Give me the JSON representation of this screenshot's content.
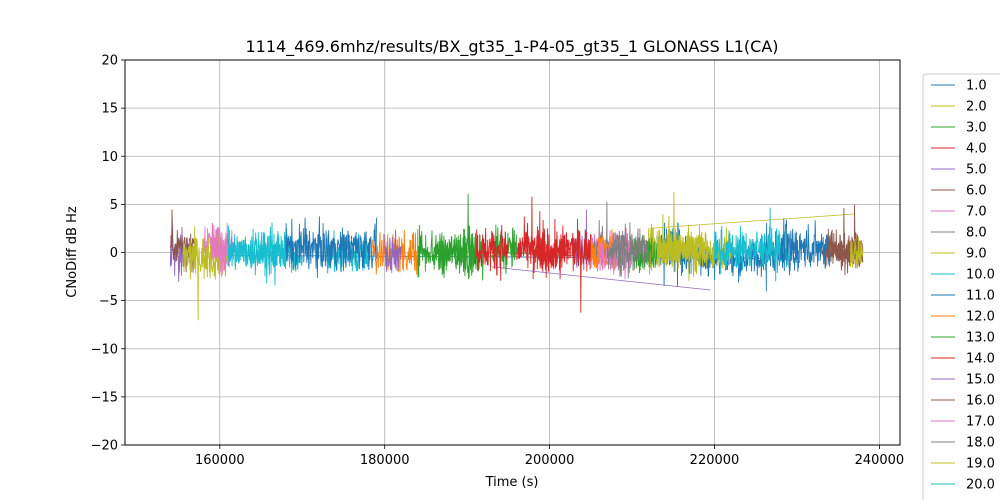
{
  "chart_data": {
    "type": "line",
    "title": "1114_469.6mhz/results/BX_gt35_1-P4-05_gt35_1 GLONASS L1(CA)",
    "xlabel": "Time (s)",
    "ylabel": "CNoDiff dB Hz",
    "xlim": [
      148500,
      242500
    ],
    "ylim": [
      -20,
      20
    ],
    "xticks": [
      160000,
      180000,
      200000,
      220000,
      240000
    ],
    "xtick_labels": [
      "160000",
      "180000",
      "200000",
      "220000",
      "240000"
    ],
    "yticks": [
      -20,
      -15,
      -10,
      -5,
      0,
      5,
      10,
      15,
      20
    ],
    "ytick_labels": [
      "−20",
      "−15",
      "−10",
      "−5",
      "0",
      "5",
      "10",
      "15",
      "20"
    ],
    "grid": true,
    "legend_position": "right (outside, clipped)",
    "series": [
      {
        "name": "1.0",
        "color": "#1f77b4",
        "segments": [
          [
            213000,
            216000,
            0.5,
            2.5
          ],
          [
            216000,
            226000,
            -0.5,
            2.0
          ],
          [
            226000,
            230000,
            0.0,
            2.3
          ]
        ],
        "line": [
          [
            161000,
            -0.3
          ],
          [
            226000,
            -0.6
          ]
        ]
      },
      {
        "name": "2.0",
        "color": "#bcbd22",
        "segments": [
          [
            212000,
            222000,
            0.2,
            2.3
          ]
        ],
        "line": [
          [
            212000,
            2.5
          ],
          [
            237000,
            4.0
          ]
        ]
      },
      {
        "name": "3.0",
        "color": "#2ca02c",
        "segments": [
          [
            186000,
            192000,
            -0.3,
            2.3
          ]
        ],
        "line": [
          [
            186000,
            0.3
          ],
          [
            207000,
            -0.5
          ]
        ]
      },
      {
        "name": "4.0",
        "color": "#d62728",
        "segments": [
          [
            198000,
            202000,
            -0.2,
            2.3
          ]
        ],
        "line": []
      },
      {
        "name": "5.0",
        "color": "#9467bd",
        "segments": [
          [
            154000,
            157000,
            -0.3,
            2.3
          ],
          [
            203000,
            205000,
            0.3,
            2.5
          ]
        ],
        "line": [
          [
            193000,
            -1.5
          ],
          [
            219500,
            -3.9
          ]
        ]
      },
      {
        "name": "6.0",
        "color": "#8c564b",
        "segments": [
          [
            154000,
            157000,
            0.8,
            1.8
          ],
          [
            233000,
            238000,
            0.0,
            2.0
          ]
        ],
        "line": []
      },
      {
        "name": "7.0",
        "color": "#e377c2",
        "segments": [
          [
            158000,
            161500,
            0.8,
            2.5
          ],
          [
            205000,
            210000,
            0.2,
            2.3
          ]
        ],
        "line": []
      },
      {
        "name": "8.0",
        "color": "#7f7f7f",
        "segments": [
          [
            205000,
            211000,
            0.2,
            2.3
          ]
        ],
        "line": []
      },
      {
        "name": "9.0",
        "color": "#bcbd22",
        "segments": [
          [
            155500,
            161000,
            -0.5,
            2.5
          ],
          [
            212000,
            219000,
            0.3,
            2.5
          ]
        ],
        "line": []
      },
      {
        "name": "10.0",
        "color": "#17becf",
        "segments": [
          [
            161000,
            170000,
            0.0,
            2.3
          ],
          [
            173000,
            178000,
            -0.3,
            2.3
          ],
          [
            220000,
            229000,
            0.3,
            2.3
          ]
        ],
        "line": []
      },
      {
        "name": "11.0",
        "color": "#1f77b4",
        "segments": [
          [
            168000,
            176000,
            0.5,
            2.5
          ],
          [
            176000,
            179000,
            0.5,
            2.5
          ],
          [
            228000,
            234000,
            0.5,
            2.5
          ]
        ],
        "line": []
      },
      {
        "name": "12.0",
        "color": "#ff7f0e",
        "segments": [
          [
            178500,
            184000,
            0.0,
            2.5
          ],
          [
            205000,
            208000,
            0.2,
            2.5
          ]
        ],
        "line": []
      },
      {
        "name": "13.0",
        "color": "#2ca02c",
        "segments": [
          [
            184000,
            191000,
            0.3,
            2.5
          ],
          [
            193000,
            196000,
            0.3,
            2.5
          ],
          [
            210000,
            213000,
            0.0,
            2.0
          ]
        ],
        "line": []
      },
      {
        "name": "14.0",
        "color": "#d62728",
        "segments": [
          [
            191000,
            195000,
            0.3,
            2.5
          ],
          [
            196000,
            205000,
            0.3,
            2.5
          ]
        ],
        "line": []
      },
      {
        "name": "15.0",
        "color": "#9467bd",
        "segments": [
          [
            180000,
            182000,
            0.0,
            2.3
          ]
        ],
        "line": []
      },
      {
        "name": "16.0",
        "color": "#8c564b",
        "segments": [
          [
            233500,
            238000,
            0.2,
            2.0
          ]
        ],
        "line": []
      },
      {
        "name": "17.0",
        "color": "#e377c2",
        "segments": [
          [
            159000,
            161000,
            0.3,
            2.3
          ],
          [
            206000,
            210000,
            -0.3,
            2.5
          ]
        ],
        "line": []
      },
      {
        "name": "18.0",
        "color": "#7f7f7f",
        "segments": [
          [
            207000,
            212000,
            0.3,
            2.0
          ]
        ],
        "line": []
      },
      {
        "name": "19.0",
        "color": "#bcbd22",
        "segments": [
          [
            236500,
            238000,
            0.0,
            2.0
          ]
        ],
        "line": []
      },
      {
        "name": "20.0",
        "color": "#17becf",
        "segments": [
          [
            161000,
            168000,
            0.2,
            2.3
          ]
        ],
        "line": []
      }
    ]
  }
}
